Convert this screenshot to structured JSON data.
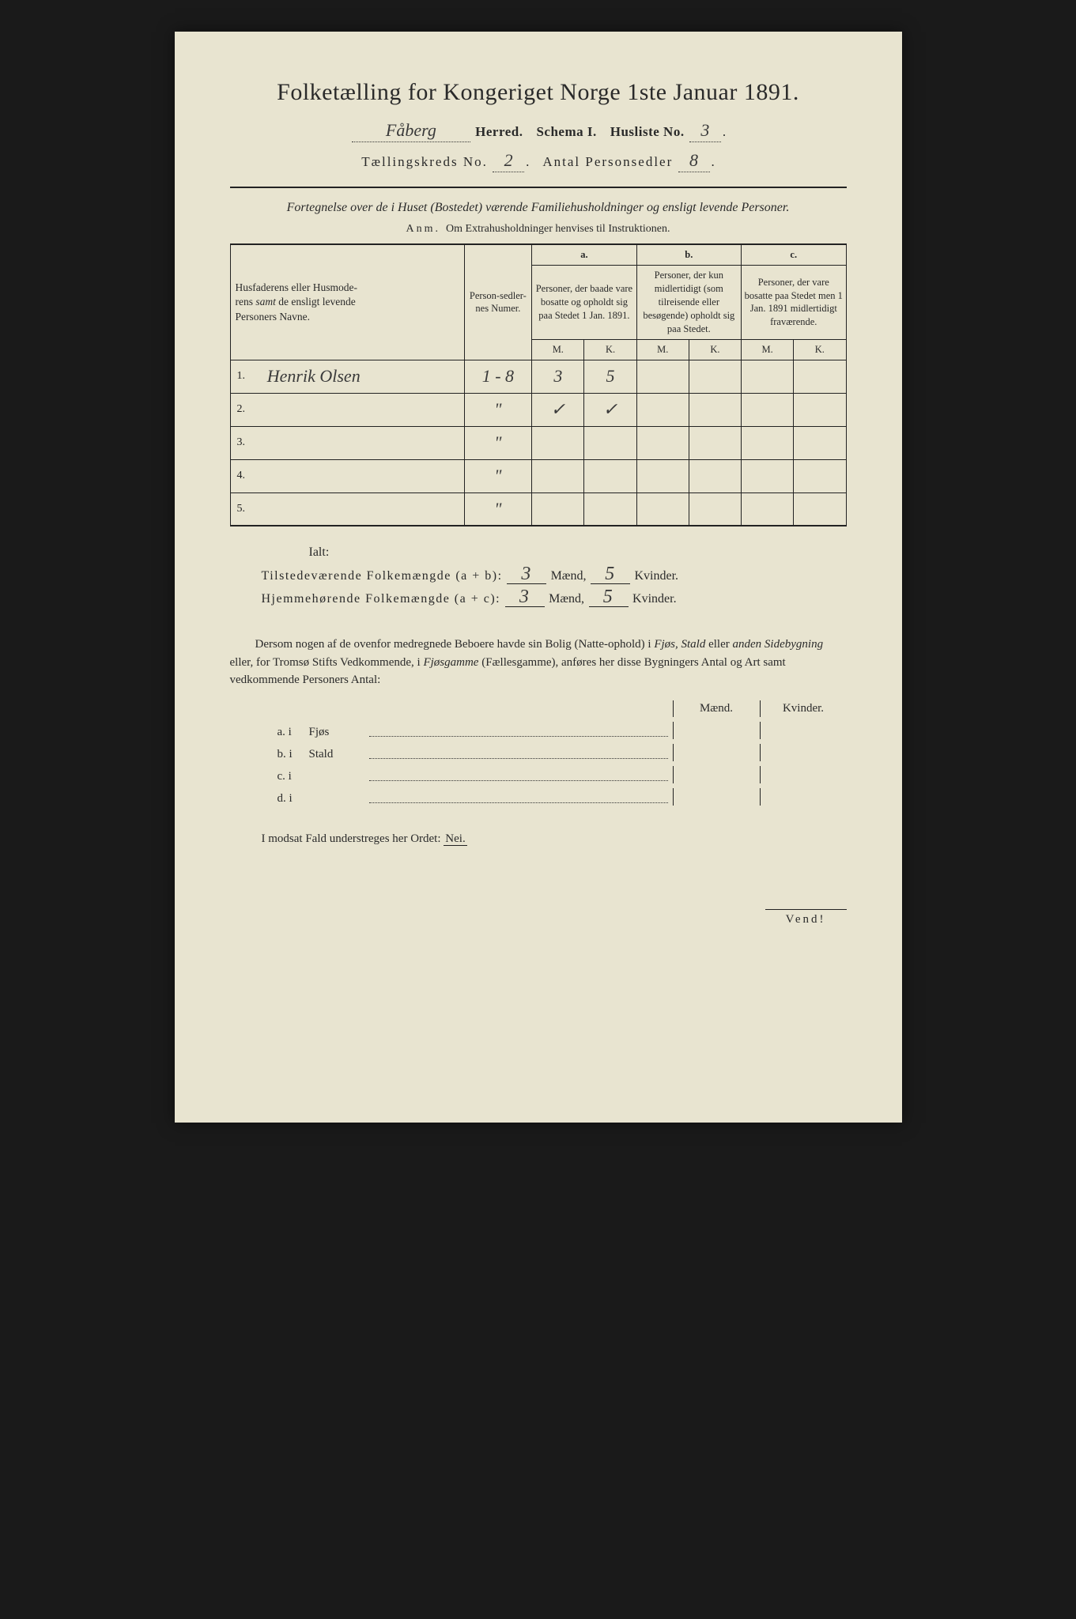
{
  "title": "Folketælling for Kongeriget Norge 1ste Januar 1891.",
  "header": {
    "herred_value": "Fåberg",
    "herred_label": "Herred.",
    "schema_label": "Schema I.",
    "husliste_label": "Husliste No.",
    "husliste_value": "3",
    "kreds_label": "Tællingskreds No.",
    "kreds_value": "2",
    "antal_label": "Antal Personsedler",
    "antal_value": "8"
  },
  "subtitle": "Fortegnelse over de i Huset (Bostedet) værende Familiehusholdninger og ensligt levende Personer.",
  "anm_label": "Anm.",
  "anm_text": "Om Extrahusholdninger henvises til Instruktionen.",
  "table": {
    "col_name": "Husfaderens eller Husmoderens samt de ensligt levende Personers Navne.",
    "col_num": "Person-sedler-nes Numer.",
    "col_a_label": "a.",
    "col_a": "Personer, der baade vare bosatte og opholdt sig paa Stedet 1 Jan. 1891.",
    "col_b_label": "b.",
    "col_b": "Personer, der kun midlertidigt (som tilreisende eller besøgende) opholdt sig paa Stedet.",
    "col_c_label": "c.",
    "col_c": "Personer, der vare bosatte paa Stedet men 1 Jan. 1891 midlertidigt fraværende.",
    "mk_m": "M.",
    "mk_k": "K.",
    "rows": [
      {
        "n": "1.",
        "name": "Henrik Olsen",
        "num": "1 - 8",
        "am": "3",
        "ak": "5",
        "bm": "",
        "bk": "",
        "cm": "",
        "ck": ""
      },
      {
        "n": "2.",
        "name": "",
        "num": "\"",
        "am": "✓",
        "ak": "✓",
        "bm": "",
        "bk": "",
        "cm": "",
        "ck": ""
      },
      {
        "n": "3.",
        "name": "",
        "num": "\"",
        "am": "",
        "ak": "",
        "bm": "",
        "bk": "",
        "cm": "",
        "ck": ""
      },
      {
        "n": "4.",
        "name": "",
        "num": "\"",
        "am": "",
        "ak": "",
        "bm": "",
        "bk": "",
        "cm": "",
        "ck": ""
      },
      {
        "n": "5.",
        "name": "",
        "num": "\"",
        "am": "",
        "ak": "",
        "bm": "",
        "bk": "",
        "cm": "",
        "ck": ""
      }
    ]
  },
  "totals": {
    "ialt": "Ialt:",
    "line1_label": "Tilstedeværende Folkemængde (a + b):",
    "line2_label": "Hjemmehørende Folkemængde (a + c):",
    "maend": "Mænd,",
    "kvinder": "Kvinder.",
    "l1_m": "3",
    "l1_k": "5",
    "l2_m": "3",
    "l2_k": "5"
  },
  "paragraph": "Dersom nogen af de ovenfor medregnede Beboere havde sin Bolig (Natteophold) i Fjøs, Stald eller anden Sidebygning eller, for Tromsø Stifts Vedkommende, i Fjøsgamme (Fællesgamme), anføres her disse Bygningers Antal og Art samt vedkommende Personers Antal:",
  "buildings": {
    "maend": "Mænd.",
    "kvinder": "Kvinder.",
    "rows": [
      {
        "lbl": "a. i",
        "type": "Fjøs"
      },
      {
        "lbl": "b. i",
        "type": "Stald"
      },
      {
        "lbl": "c. i",
        "type": ""
      },
      {
        "lbl": "d. i",
        "type": ""
      }
    ]
  },
  "footer": "I modsat Fald understreges her Ordet:",
  "nei": "Nei.",
  "vend": "Vend!",
  "colors": {
    "paper": "#e8e4d0",
    "ink": "#2a2a2a",
    "script": "#3a3a3a",
    "bg": "#1a1a1a"
  }
}
